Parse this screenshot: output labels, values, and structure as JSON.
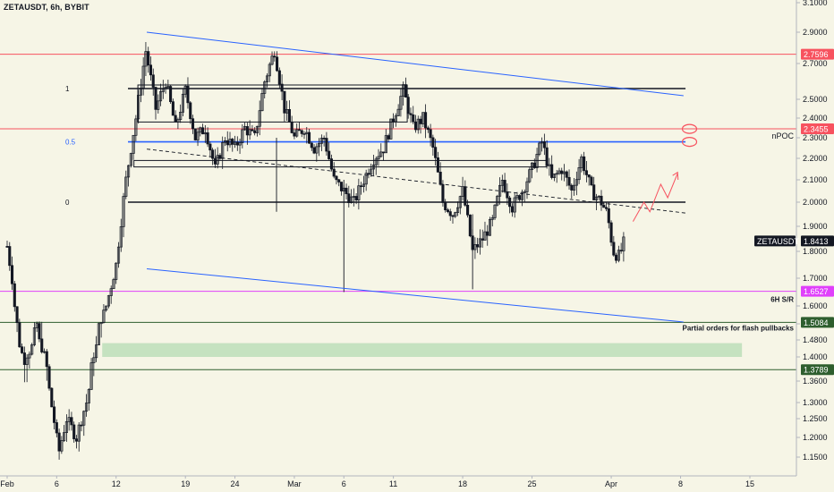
{
  "header": {
    "symbol_line": "ZETAUSDT, 6h, BYBIT"
  },
  "chart_data": {
    "type": "candlestick",
    "interval": "6h",
    "y_axis": {
      "position": "right",
      "range": [
        1.12,
        3.1
      ],
      "ticks": [
        "3.1000",
        "2.9000",
        "2.7000",
        "2.5000",
        "2.4000",
        "2.3000",
        "2.2000",
        "2.1000",
        "2.0000",
        "1.9000",
        "1.8000",
        "1.7000",
        "1.6000",
        "1.5000",
        "1.4800",
        "1.4000",
        "1.3600",
        "1.3000",
        "1.2500",
        "1.2000",
        "1.1500"
      ]
    },
    "x_axis": {
      "labels": [
        {
          "text": "Feb",
          "day": 1
        },
        {
          "text": "6",
          "day": 6
        },
        {
          "text": "12",
          "day": 12
        },
        {
          "text": "19",
          "day": 19
        },
        {
          "text": "24",
          "day": 24
        },
        {
          "text": "Mar",
          "day": 30
        },
        {
          "text": "6",
          "day": 35
        },
        {
          "text": "11",
          "day": 40
        },
        {
          "text": "18",
          "day": 47
        },
        {
          "text": "25",
          "day": 54
        },
        {
          "text": "Apr",
          "day": 62
        },
        {
          "text": "8",
          "day": 69
        },
        {
          "text": "15",
          "day": 76
        }
      ]
    },
    "price_path": [
      [
        1,
        1.82
      ],
      [
        1.5,
        1.7
      ],
      [
        2,
        1.5
      ],
      [
        2.6,
        1.4
      ],
      [
        3.2,
        1.42
      ],
      [
        4,
        1.5
      ],
      [
        5,
        1.38
      ],
      [
        6.2,
        1.16
      ],
      [
        7,
        1.25
      ],
      [
        8,
        1.2
      ],
      [
        9,
        1.3
      ],
      [
        10,
        1.45
      ],
      [
        11,
        1.6
      ],
      [
        12,
        1.75
      ],
      [
        13,
        2.1
      ],
      [
        14,
        2.4
      ],
      [
        15,
        2.78
      ],
      [
        16,
        2.45
      ],
      [
        17,
        2.6
      ],
      [
        18,
        2.35
      ],
      [
        19,
        2.55
      ],
      [
        20,
        2.3
      ],
      [
        21,
        2.35
      ],
      [
        22,
        2.15
      ],
      [
        23,
        2.3
      ],
      [
        24,
        2.25
      ],
      [
        25,
        2.35
      ],
      [
        26,
        2.3
      ],
      [
        27,
        2.6
      ],
      [
        28,
        2.78
      ],
      [
        29,
        2.45
      ],
      [
        30,
        2.3
      ],
      [
        31,
        2.35
      ],
      [
        32,
        2.25
      ],
      [
        33,
        2.3
      ],
      [
        34,
        2.1
      ],
      [
        35,
        2.05
      ],
      [
        36,
        2.0
      ],
      [
        37,
        2.1
      ],
      [
        38,
        2.2
      ],
      [
        39,
        2.25
      ],
      [
        40,
        2.4
      ],
      [
        41,
        2.55
      ],
      [
        42,
        2.35
      ],
      [
        43,
        2.4
      ],
      [
        44,
        2.25
      ],
      [
        45,
        2.0
      ],
      [
        46,
        1.95
      ],
      [
        47,
        2.05
      ],
      [
        48,
        1.8
      ],
      [
        49,
        1.85
      ],
      [
        50,
        1.92
      ],
      [
        51,
        2.1
      ],
      [
        52,
        1.98
      ],
      [
        53,
        2.05
      ],
      [
        54,
        2.15
      ],
      [
        55,
        2.28
      ],
      [
        56,
        2.1
      ],
      [
        57,
        2.15
      ],
      [
        58,
        2.05
      ],
      [
        59,
        2.2
      ],
      [
        60,
        2.05
      ],
      [
        61,
        2.0
      ],
      [
        61.6,
        1.95
      ],
      [
        62.2,
        1.8
      ],
      [
        62.8,
        1.78
      ],
      [
        63.4,
        1.85
      ]
    ],
    "horizontal_levels": [
      {
        "price": 2.7596,
        "color": "#f7525f",
        "tag": "2.7596",
        "tag_bg": "#f7525f",
        "tag_fg": "#ffffff"
      },
      {
        "price": 2.3455,
        "color": "#f7525f",
        "tag": "2.3455",
        "tag_bg": "#f7525f",
        "tag_fg": "#ffffff",
        "label": "nPOC"
      },
      {
        "price": 1.8413,
        "color": "none",
        "tag": "1.8413",
        "tag_bg": "#131722",
        "tag_fg": "#ffffff",
        "tag_prefix": "ZETAUSDT"
      },
      {
        "price": 1.6527,
        "color": "#e040fb",
        "tag": "1.6527",
        "tag_bg": "#e040fb",
        "tag_fg": "#ffffff",
        "label": "6H S/R"
      },
      {
        "price": 1.5084,
        "color": "#2e5e2e",
        "tag": "1.5084",
        "tag_bg": "#2e5e2e",
        "tag_fg": "#ffffff",
        "label": "Partial orders for flash pullbacks"
      },
      {
        "price": 1.3789,
        "color": "#2e5e2e",
        "tag": "1.3789",
        "tag_bg": "#2e5e2e",
        "tag_fg": "#ffffff"
      }
    ],
    "fib_levels": [
      {
        "label": "1",
        "price": 2.56,
        "color": "#131722"
      },
      {
        "label": "0.5",
        "price": 2.28,
        "color": "#2962ff"
      },
      {
        "label": "0",
        "price": 2.0,
        "color": "#131722"
      }
    ],
    "annotations": {
      "nPOC": "nPOC",
      "sr": "6H S/R",
      "partial": "Partial orders for flash pullbacks"
    },
    "colors": {
      "background": "#f6f5e6",
      "candle": "#131722",
      "channel": "#2962ff",
      "demand_zone": "#a5d6a7"
    }
  }
}
